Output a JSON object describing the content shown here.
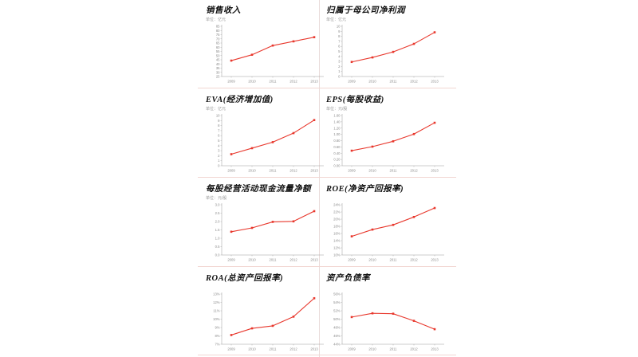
{
  "page": {
    "background": "#ffffff",
    "divider_color_horizontal": "#f2d6d2",
    "divider_color_vertical": "#e9dcda",
    "axis_color": "#9a9a9a",
    "tick_text_color": "#8a8a8a",
    "title_color": "#111111"
  },
  "chart_data": [
    {
      "id": "sales-revenue",
      "type": "line",
      "title": "销售收入",
      "unit": "单位：亿元",
      "categories": [
        "2009",
        "2010",
        "2011",
        "2012",
        "2013"
      ],
      "values": [
        44,
        51,
        62,
        67,
        72
      ],
      "ylim": [
        25,
        85
      ],
      "ystep": 5,
      "ylabel_format": "int",
      "line_color": "#e8372c",
      "grid": false,
      "legend": "none"
    },
    {
      "id": "net-profit-parent",
      "type": "line",
      "title": "归属于母公司净利润",
      "unit": "单位：亿元",
      "categories": [
        "2009",
        "2010",
        "2011",
        "2012",
        "2013"
      ],
      "values": [
        2.9,
        3.8,
        4.9,
        6.5,
        8.8
      ],
      "ylim": [
        0,
        10
      ],
      "ystep": 1,
      "ylabel_format": "int",
      "line_color": "#e8372c",
      "grid": false,
      "legend": "none"
    },
    {
      "id": "eva",
      "type": "line",
      "title": "EVA(经济增加值)",
      "unit": "单位：亿元",
      "categories": [
        "2009",
        "2010",
        "2011",
        "2012",
        "2013"
      ],
      "values": [
        2.3,
        3.5,
        4.7,
        6.5,
        9.1
      ],
      "ylim": [
        0,
        10
      ],
      "ystep": 1,
      "ylabel_format": "int",
      "line_color": "#e8372c",
      "grid": false,
      "legend": "none"
    },
    {
      "id": "eps",
      "type": "line",
      "title": "EPS(每股收益)",
      "unit": "单位：元/股",
      "categories": [
        "2009",
        "2010",
        "2011",
        "2012",
        "2013"
      ],
      "values": [
        0.48,
        0.61,
        0.78,
        1.01,
        1.37
      ],
      "ylim": [
        0,
        1.6
      ],
      "ystep": 0.2,
      "ylabel_format": "dec2",
      "line_color": "#e8372c",
      "grid": false,
      "legend": "none"
    },
    {
      "id": "operating-cashflow-per-share",
      "type": "line",
      "title": "每股经营活动现金流量净额",
      "unit": "单位：元/股",
      "categories": [
        "2009",
        "2010",
        "2011",
        "2012",
        "2013"
      ],
      "values": [
        1.39,
        1.62,
        1.98,
        2.01,
        2.62
      ],
      "ylim": [
        0,
        3
      ],
      "ystep": 0.5,
      "ylabel_format": "dec1",
      "line_color": "#e8372c",
      "grid": false,
      "legend": "none"
    },
    {
      "id": "roe",
      "type": "line",
      "title": "ROE(净资产回报率)",
      "categories": [
        "2009",
        "2010",
        "2011",
        "2012",
        "2013"
      ],
      "values": [
        15.2,
        17.1,
        18.4,
        20.6,
        23.1
      ],
      "ylim": [
        10,
        24
      ],
      "ystep": 2,
      "ylabel_format": "pct",
      "line_color": "#e8372c",
      "grid": false,
      "legend": "none"
    },
    {
      "id": "roa",
      "type": "line",
      "title": "ROA(总资产回报率)",
      "categories": [
        "2009",
        "2010",
        "2011",
        "2012",
        "2013"
      ],
      "values": [
        8.1,
        8.9,
        9.2,
        10.3,
        12.5
      ],
      "ylim": [
        7,
        13
      ],
      "ystep": 1,
      "ylabel_format": "pct",
      "line_color": "#e8372c",
      "grid": false,
      "legend": "none"
    },
    {
      "id": "debt-ratio",
      "type": "line",
      "title": "资产负债率",
      "categories": [
        "2009",
        "2010",
        "2011",
        "2012",
        "2013"
      ],
      "values": [
        50.5,
        51.4,
        51.3,
        49.6,
        47.6
      ],
      "ylim": [
        44,
        56
      ],
      "ystep": 2,
      "ylabel_format": "pct",
      "line_color": "#e8372c",
      "grid": false,
      "legend": "none"
    }
  ]
}
